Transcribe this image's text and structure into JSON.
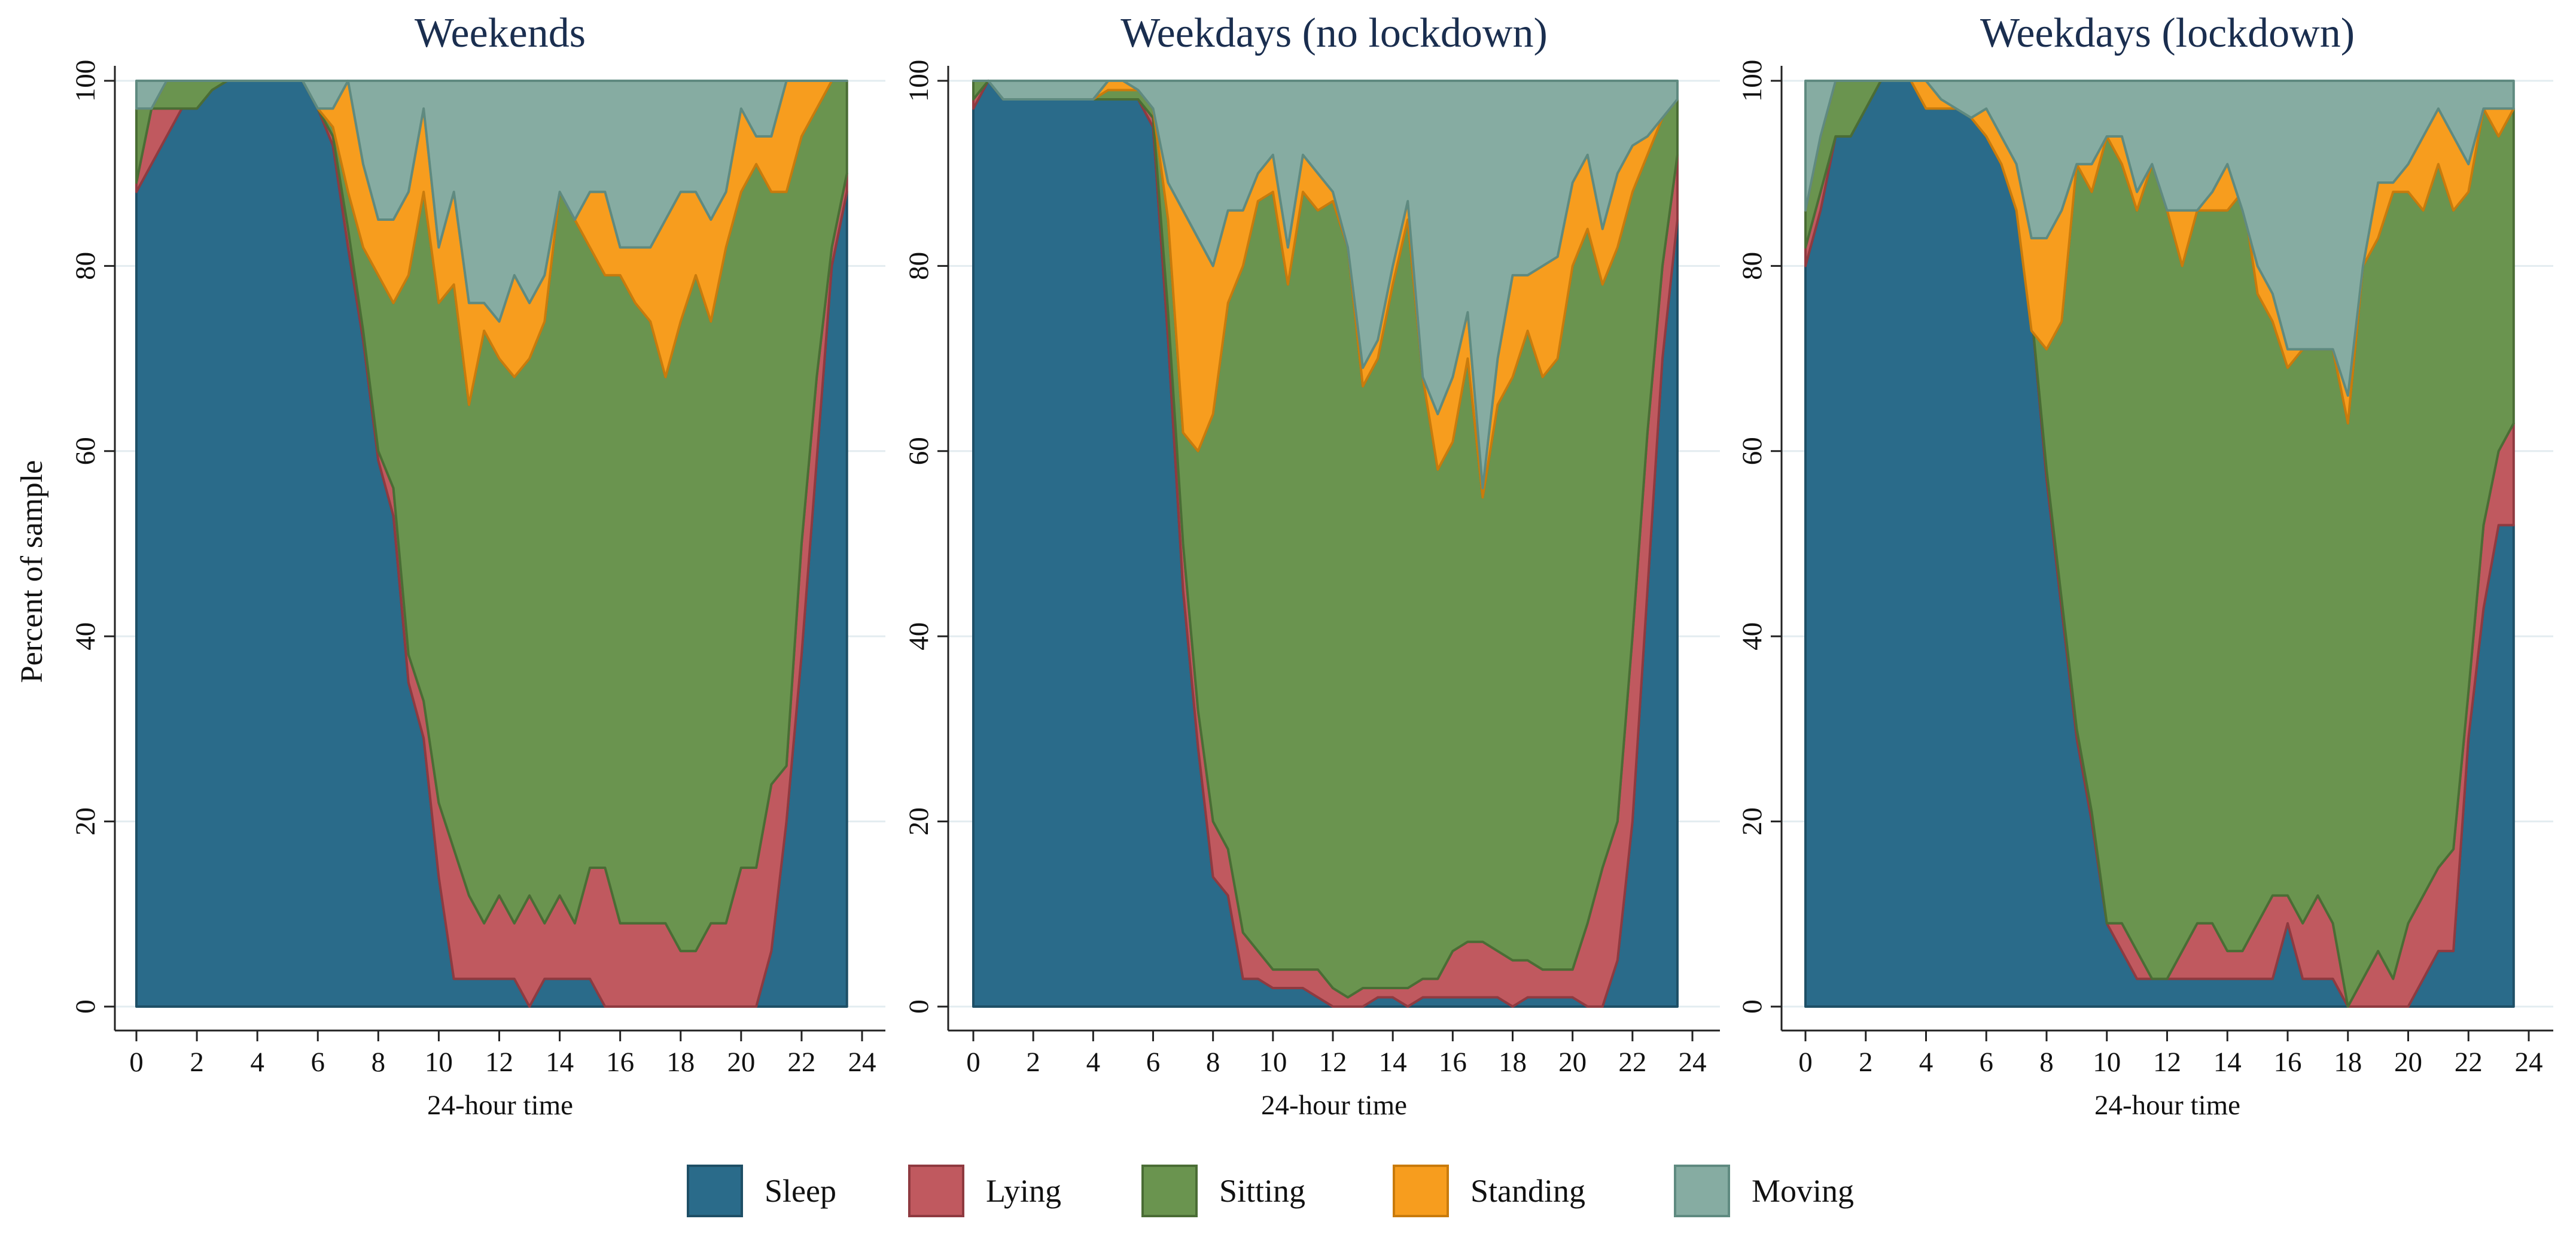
{
  "chart_data": {
    "type": "area",
    "stacked": true,
    "ylabel": "Percent of sample",
    "xlabel": "24-hour time",
    "xlim": [
      0,
      24
    ],
    "ylim": [
      0,
      100
    ],
    "xticks": [
      0,
      2,
      4,
      6,
      8,
      10,
      12,
      14,
      16,
      18,
      20,
      22,
      24
    ],
    "yticks": [
      0,
      20,
      40,
      60,
      80,
      100
    ],
    "grid": "horizontal",
    "legend_position": "bottom",
    "categories": [
      "Sleep",
      "Lying",
      "Sitting",
      "Standing",
      "Moving"
    ],
    "colors": {
      "Sleep": "#2a6b8a",
      "Lying": "#c0595f",
      "Sitting": "#6a944f",
      "Standing": "#f79d1e",
      "Moving": "#86aca2"
    },
    "edge_colors": {
      "Sleep": "#1e4f66",
      "Lying": "#8f3a40",
      "Sitting": "#4a6d35",
      "Standing": "#c97b0c",
      "Moving": "#5f8a80"
    },
    "panels": [
      {
        "title": "Weekends",
        "x": [
          0,
          0.5,
          1,
          1.5,
          2,
          2.5,
          3,
          3.5,
          4,
          4.5,
          5,
          5.5,
          6,
          6.5,
          7,
          7.5,
          8,
          8.5,
          9,
          9.5,
          10,
          10.5,
          11,
          11.5,
          12,
          12.5,
          13,
          13.5,
          14,
          14.5,
          15,
          15.5,
          16,
          16.5,
          17,
          17.5,
          18,
          18.5,
          19,
          19.5,
          20,
          20.5,
          21,
          21.5,
          22,
          22.5,
          23,
          23.5
        ],
        "cumulative": {
          "Sleep": [
            88,
            91,
            94,
            97,
            97,
            99,
            100,
            100,
            100,
            100,
            100,
            100,
            97,
            93,
            82,
            72,
            59,
            53,
            35,
            29,
            14,
            3,
            3,
            3,
            3,
            3,
            0,
            3,
            3,
            3,
            3,
            0,
            0,
            0,
            0,
            0,
            0,
            0,
            0,
            0,
            0,
            0,
            6,
            20,
            38,
            59,
            80,
            88
          ],
          "Lying": [
            89,
            97,
            97,
            97,
            97,
            99,
            100,
            100,
            100,
            100,
            100,
            100,
            97,
            94,
            84,
            73,
            60,
            56,
            38,
            33,
            22,
            17,
            12,
            9,
            12,
            9,
            12,
            9,
            12,
            9,
            15,
            15,
            9,
            9,
            9,
            9,
            6,
            6,
            9,
            9,
            15,
            15,
            24,
            26,
            50,
            68,
            82,
            90
          ],
          "Sitting": [
            97,
            97,
            100,
            100,
            100,
            100,
            100,
            100,
            100,
            100,
            100,
            100,
            97,
            95,
            88,
            82,
            79,
            76,
            79,
            88,
            76,
            78,
            65,
            73,
            70,
            68,
            70,
            74,
            88,
            85,
            82,
            79,
            79,
            76,
            74,
            68,
            74,
            79,
            74,
            82,
            88,
            91,
            88,
            88,
            94,
            97,
            100,
            100
          ],
          "Standing": [
            97,
            97,
            100,
            100,
            100,
            100,
            100,
            100,
            100,
            100,
            100,
            100,
            97,
            97,
            100,
            91,
            85,
            85,
            88,
            97,
            82,
            88,
            76,
            76,
            74,
            79,
            76,
            79,
            88,
            85,
            88,
            88,
            82,
            82,
            82,
            85,
            88,
            88,
            85,
            88,
            97,
            94,
            94,
            100,
            100,
            100,
            100,
            100
          ],
          "Moving": [
            100,
            100,
            100,
            100,
            100,
            100,
            100,
            100,
            100,
            100,
            100,
            100,
            100,
            100,
            100,
            100,
            100,
            100,
            100,
            100,
            100,
            100,
            100,
            100,
            100,
            100,
            100,
            100,
            100,
            100,
            100,
            100,
            100,
            100,
            100,
            100,
            100,
            100,
            100,
            100,
            100,
            100,
            100,
            100,
            100,
            100,
            100,
            100
          ]
        }
      },
      {
        "title": "Weekdays (no lockdown)",
        "x": [
          0,
          0.5,
          1,
          1.5,
          2,
          2.5,
          3,
          3.5,
          4,
          4.5,
          5,
          5.5,
          6,
          6.5,
          7,
          7.5,
          8,
          8.5,
          9,
          9.5,
          10,
          10.5,
          11,
          11.5,
          12,
          12.5,
          13,
          13.5,
          14,
          14.5,
          15,
          15.5,
          16,
          16.5,
          17,
          17.5,
          18,
          18.5,
          19,
          19.5,
          20,
          20.5,
          21,
          21.5,
          22,
          22.5,
          23,
          23.5
        ],
        "cumulative": {
          "Sleep": [
            97,
            100,
            98,
            98,
            98,
            98,
            98,
            98,
            98,
            98,
            98,
            98,
            95,
            72,
            45,
            28,
            14,
            12,
            3,
            3,
            2,
            2,
            2,
            1,
            0,
            0,
            0,
            1,
            1,
            0,
            1,
            1,
            1,
            1,
            1,
            1,
            0,
            1,
            1,
            1,
            1,
            0,
            0,
            5,
            20,
            45,
            70,
            85
          ],
          "Lying": [
            98,
            100,
            98,
            98,
            98,
            98,
            98,
            98,
            98,
            98,
            98,
            98,
            96,
            75,
            50,
            32,
            20,
            17,
            8,
            6,
            4,
            4,
            4,
            4,
            2,
            1,
            2,
            2,
            2,
            2,
            3,
            3,
            6,
            7,
            7,
            6,
            5,
            5,
            4,
            4,
            4,
            9,
            15,
            20,
            40,
            62,
            80,
            92
          ],
          "Sitting": [
            100,
            100,
            98,
            98,
            98,
            98,
            98,
            98,
            98,
            99,
            99,
            99,
            97,
            85,
            62,
            60,
            64,
            76,
            80,
            87,
            88,
            78,
            88,
            86,
            87,
            82,
            67,
            70,
            78,
            85,
            68,
            58,
            61,
            70,
            55,
            65,
            68,
            73,
            68,
            70,
            80,
            84,
            78,
            82,
            88,
            92,
            96,
            98
          ],
          "Standing": [
            100,
            100,
            98,
            98,
            98,
            98,
            98,
            98,
            98,
            100,
            100,
            99,
            97,
            89,
            86,
            83,
            80,
            86,
            86,
            90,
            92,
            82,
            92,
            90,
            88,
            82,
            69,
            72,
            80,
            87,
            68,
            64,
            68,
            75,
            56,
            70,
            79,
            79,
            80,
            81,
            89,
            92,
            84,
            90,
            93,
            94,
            96,
            98
          ],
          "Moving": [
            100,
            100,
            100,
            100,
            100,
            100,
            100,
            100,
            100,
            100,
            100,
            100,
            100,
            100,
            100,
            100,
            100,
            100,
            100,
            100,
            100,
            100,
            100,
            100,
            100,
            100,
            100,
            100,
            100,
            100,
            100,
            100,
            100,
            100,
            100,
            100,
            100,
            100,
            100,
            100,
            100,
            100,
            100,
            100,
            100,
            100,
            100,
            100
          ]
        }
      },
      {
        "title": "Weekdays (lockdown)",
        "x": [
          0,
          0.5,
          1,
          1.5,
          2,
          2.5,
          3,
          3.5,
          4,
          4.5,
          5,
          5.5,
          6,
          6.5,
          7,
          7.5,
          8,
          8.5,
          9,
          9.5,
          10,
          10.5,
          11,
          11.5,
          12,
          12.5,
          13,
          13.5,
          14,
          14.5,
          15,
          15.5,
          16,
          16.5,
          17,
          17.5,
          18,
          18.5,
          19,
          19.5,
          20,
          20.5,
          21,
          21.5,
          22,
          22.5,
          23,
          23.5
        ],
        "cumulative": {
          "Sleep": [
            80,
            86,
            94,
            94,
            97,
            100,
            100,
            100,
            97,
            97,
            97,
            97,
            94,
            91,
            86,
            75,
            57,
            43,
            29,
            20,
            9,
            6,
            3,
            3,
            3,
            3,
            3,
            3,
            3,
            3,
            3,
            3,
            9,
            3,
            3,
            3,
            0,
            0,
            0,
            0,
            0,
            3,
            6,
            6,
            29,
            43,
            52,
            52
          ],
          "Lying": [
            82,
            88,
            94,
            94,
            97,
            100,
            100,
            100,
            97,
            97,
            97,
            97,
            94,
            91,
            86,
            75,
            58,
            44,
            30,
            21,
            9,
            9,
            6,
            3,
            3,
            6,
            9,
            9,
            6,
            6,
            9,
            12,
            12,
            9,
            12,
            9,
            0,
            3,
            6,
            3,
            9,
            12,
            15,
            17,
            34,
            52,
            60,
            63
          ],
          "Sitting": [
            86,
            94,
            100,
            100,
            100,
            100,
            100,
            100,
            97,
            97,
            97,
            96,
            94,
            91,
            86,
            73,
            71,
            74,
            91,
            88,
            94,
            91,
            86,
            91,
            86,
            80,
            86,
            86,
            86,
            88,
            77,
            74,
            69,
            71,
            71,
            71,
            63,
            80,
            83,
            88,
            88,
            86,
            91,
            86,
            88,
            97,
            94,
            97
          ],
          "Standing": [
            86,
            94,
            100,
            100,
            100,
            100,
            100,
            100,
            100,
            98,
            97,
            96,
            97,
            94,
            91,
            83,
            83,
            86,
            91,
            91,
            94,
            94,
            88,
            91,
            86,
            86,
            86,
            88,
            91,
            86,
            80,
            77,
            71,
            71,
            71,
            71,
            66,
            80,
            89,
            89,
            91,
            94,
            97,
            94,
            91,
            97,
            97,
            97
          ],
          "Moving": [
            100,
            100,
            100,
            100,
            100,
            100,
            100,
            100,
            100,
            100,
            100,
            100,
            100,
            100,
            100,
            100,
            100,
            100,
            100,
            100,
            100,
            100,
            100,
            100,
            100,
            100,
            100,
            100,
            100,
            100,
            100,
            100,
            100,
            100,
            100,
            100,
            100,
            100,
            100,
            100,
            100,
            100,
            100,
            100,
            100,
            100,
            100,
            100
          ]
        }
      }
    ]
  }
}
